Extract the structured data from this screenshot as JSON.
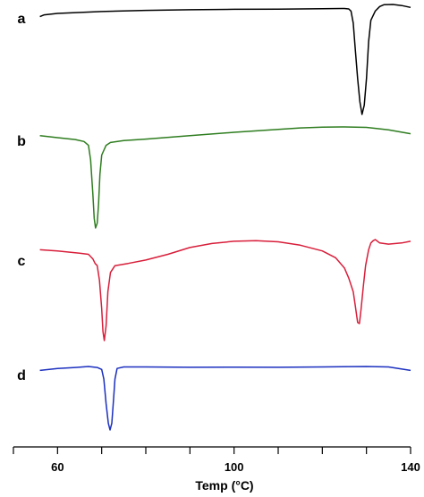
{
  "chart_data": {
    "type": "line",
    "xlabel": "Temp (°C)",
    "xlim": [
      50,
      140
    ],
    "xticks": [
      60,
      100,
      140
    ],
    "minor_tick_step": 10,
    "grid": false,
    "legend": "none",
    "series": [
      {
        "label": "a",
        "color": "#000000",
        "points": [
          [
            56,
            18
          ],
          [
            57,
            16
          ],
          [
            60,
            14.5
          ],
          [
            70,
            12.5
          ],
          [
            80,
            11.2
          ],
          [
            90,
            10.5
          ],
          [
            100,
            10
          ],
          [
            110,
            9.8
          ],
          [
            120,
            9.5
          ],
          [
            125,
            9.2
          ],
          [
            126,
            9.6
          ],
          [
            126.5,
            12
          ],
          [
            127,
            25
          ],
          [
            127.5,
            55
          ],
          [
            128,
            85
          ],
          [
            128.5,
            110
          ],
          [
            129,
            124
          ],
          [
            129.5,
            114
          ],
          [
            130,
            85
          ],
          [
            130.5,
            45
          ],
          [
            131,
            22
          ],
          [
            132,
            12
          ],
          [
            133,
            7
          ],
          [
            134,
            5
          ],
          [
            136,
            4.8
          ],
          [
            138,
            6
          ],
          [
            140,
            8
          ]
        ]
      },
      {
        "label": "b",
        "color": "#2e7d1f",
        "points": [
          [
            56,
            10
          ],
          [
            60,
            12
          ],
          [
            64,
            14
          ],
          [
            66,
            16
          ],
          [
            67,
            20
          ],
          [
            67.5,
            35
          ],
          [
            68,
            70
          ],
          [
            68.3,
            95
          ],
          [
            68.6,
            105
          ],
          [
            69,
            100
          ],
          [
            69.3,
            80
          ],
          [
            69.6,
            50
          ],
          [
            70,
            30
          ],
          [
            71,
            20
          ],
          [
            72,
            17
          ],
          [
            75,
            15
          ],
          [
            80,
            13.5
          ],
          [
            90,
            10
          ],
          [
            100,
            6.5
          ],
          [
            110,
            3.5
          ],
          [
            115,
            2
          ],
          [
            120,
            1.2
          ],
          [
            125,
            1
          ],
          [
            130,
            1.5
          ],
          [
            135,
            4
          ],
          [
            140,
            8
          ]
        ]
      },
      {
        "label": "c",
        "color": "#d81e3a",
        "points": [
          [
            56,
            8
          ],
          [
            60,
            9
          ],
          [
            65,
            11
          ],
          [
            67,
            12
          ],
          [
            68,
            16
          ],
          [
            68.5,
            20
          ],
          [
            69,
            22
          ],
          [
            69.5,
            35
          ],
          [
            70,
            60
          ],
          [
            70.3,
            80
          ],
          [
            70.6,
            88
          ],
          [
            71,
            75
          ],
          [
            71.4,
            45
          ],
          [
            72,
            28
          ],
          [
            73,
            22
          ],
          [
            76,
            20
          ],
          [
            80,
            17
          ],
          [
            85,
            12
          ],
          [
            90,
            6
          ],
          [
            95,
            2.5
          ],
          [
            100,
            0.5
          ],
          [
            105,
            0
          ],
          [
            110,
            1
          ],
          [
            115,
            4
          ],
          [
            120,
            9
          ],
          [
            123,
            15
          ],
          [
            125,
            24
          ],
          [
            126,
            33
          ],
          [
            127,
            45
          ],
          [
            127.5,
            58
          ],
          [
            128,
            72
          ],
          [
            128.4,
            73
          ],
          [
            128.8,
            60
          ],
          [
            129.3,
            40
          ],
          [
            129.8,
            22
          ],
          [
            130.5,
            8
          ],
          [
            131,
            2
          ],
          [
            131.5,
            0
          ],
          [
            132,
            -1
          ],
          [
            133,
            2
          ],
          [
            135,
            3
          ],
          [
            138,
            2
          ],
          [
            140,
            0.5
          ]
        ]
      },
      {
        "label": "d",
        "color": "#1a2fbf",
        "points": [
          [
            56,
            11
          ],
          [
            60,
            9
          ],
          [
            64,
            8
          ],
          [
            67,
            7
          ],
          [
            69,
            8
          ],
          [
            70,
            10
          ],
          [
            70.5,
            20
          ],
          [
            71,
            45
          ],
          [
            71.5,
            65
          ],
          [
            71.9,
            72
          ],
          [
            72.3,
            65
          ],
          [
            72.7,
            40
          ],
          [
            73,
            20
          ],
          [
            73.5,
            9
          ],
          [
            75,
            7.5
          ],
          [
            80,
            7.5
          ],
          [
            90,
            7.8
          ],
          [
            100,
            7.6
          ],
          [
            110,
            7.8
          ],
          [
            120,
            7.5
          ],
          [
            130,
            7
          ],
          [
            135,
            7.5
          ],
          [
            140,
            11
          ]
        ]
      }
    ]
  }
}
